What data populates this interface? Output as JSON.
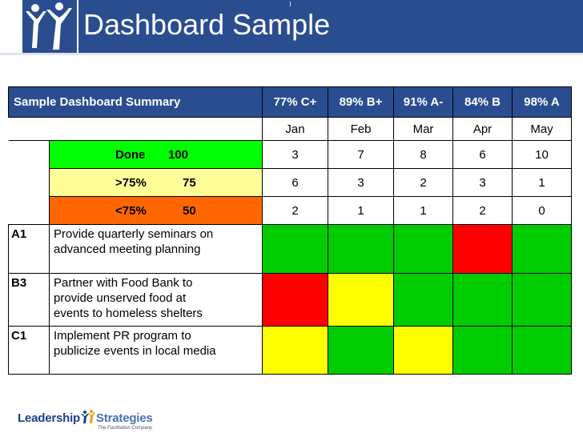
{
  "title": "Dashboard Sample",
  "summary": {
    "title": "Sample Dashboard Summary",
    "grades": [
      "77% C+",
      "89% B+",
      "91% A-",
      "84% B",
      "98% A"
    ],
    "months": [
      "Jan",
      "Feb",
      "Mar",
      "Apr",
      "May"
    ]
  },
  "legend": [
    {
      "label": "Done",
      "value": "100",
      "color": "#00ff00",
      "counts": [
        "3",
        "7",
        "8",
        "6",
        "10"
      ]
    },
    {
      "label": ">75%",
      "value": "75",
      "color": "#ffff99",
      "counts": [
        "6",
        "3",
        "2",
        "3",
        "1"
      ]
    },
    {
      "label": "<75%",
      "value": "50",
      "color": "#ff6600",
      "counts": [
        "2",
        "1",
        "1",
        "2",
        "0"
      ]
    }
  ],
  "items": [
    {
      "code": "A1",
      "lines": [
        "Provide quarterly seminars on",
        "advanced meeting planning"
      ],
      "status": [
        "green",
        "green",
        "green",
        "red",
        "green"
      ]
    },
    {
      "code": "B3",
      "lines": [
        "Partner with Food Bank to",
        "provide unserved food at",
        "events to homeless shelters"
      ],
      "status": [
        "red",
        "yellow",
        "green",
        "green",
        "green"
      ]
    },
    {
      "code": "C1",
      "lines": [
        "Implement PR program to",
        "publicize events in local media"
      ],
      "status": [
        "yellow",
        "green",
        "yellow",
        "green",
        "green"
      ]
    }
  ],
  "status_colors": {
    "green": "#00cc00",
    "yellow": "#ffff00",
    "red": "#ff0000"
  },
  "footer": {
    "brand_part1": "Leadership",
    "brand_part2": "Strategies",
    "tagline": "The Facilitation Company"
  }
}
